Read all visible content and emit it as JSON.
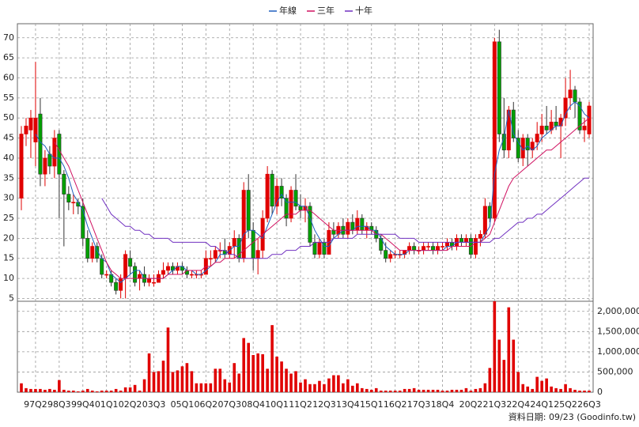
{
  "chart_data": [
    {
      "type": "candlestick",
      "legend": "top",
      "grid": true,
      "up_color": "#e00000",
      "down_color": "#00a000",
      "ylim": [
        4.5,
        73.5
      ],
      "yticks": [
        5,
        10,
        15,
        20,
        25,
        30,
        35,
        40,
        45,
        50,
        55,
        60,
        65,
        70
      ],
      "categories": [
        null,
        null,
        null,
        "97Q2",
        null,
        null,
        null,
        null,
        "98Q3",
        null,
        null,
        null,
        null,
        "99Q4",
        null,
        null,
        null,
        null,
        "01Q1",
        null,
        null,
        null,
        null,
        "02Q2",
        null,
        null,
        null,
        null,
        "03Q3",
        null,
        null,
        null,
        null,
        null,
        "05Q1",
        null,
        null,
        null,
        null,
        "06Q2",
        null,
        null,
        null,
        null,
        "07Q3",
        null,
        null,
        null,
        null,
        "08Q4",
        null,
        null,
        null,
        null,
        "10Q1",
        null,
        null,
        null,
        null,
        "11Q2",
        null,
        null,
        null,
        null,
        "12Q3",
        null,
        null,
        null,
        null,
        "13Q4",
        null,
        null,
        null,
        null,
        "15Q1",
        null,
        null,
        null,
        null,
        "16Q2",
        null,
        null,
        null,
        null,
        "17Q3",
        null,
        null,
        null,
        null,
        "18Q4",
        null,
        null,
        null,
        null,
        null,
        "20Q2",
        null,
        null,
        null,
        null,
        "21Q3",
        null,
        null,
        null,
        null,
        "22Q4",
        null,
        null,
        null,
        null,
        "24Q1",
        null,
        null,
        null,
        null,
        "25Q2",
        null,
        null,
        null,
        null,
        "26Q3"
      ],
      "open": [
        30,
        46,
        47,
        44,
        51,
        36,
        41,
        38,
        46,
        36,
        31,
        29,
        29,
        28,
        20,
        15,
        18,
        15,
        11,
        11,
        9,
        7,
        10,
        15,
        13,
        10,
        11,
        9,
        9,
        9,
        11,
        12,
        13,
        12,
        13,
        12,
        11,
        11,
        11,
        11,
        15,
        15,
        17,
        17,
        16,
        18,
        20,
        15,
        32,
        22,
        15,
        17,
        25,
        36,
        28,
        33,
        30,
        25,
        32,
        28,
        27,
        28,
        19,
        16,
        19,
        16,
        22,
        21,
        23,
        21,
        24,
        22,
        25,
        22,
        23,
        22,
        20,
        17,
        15,
        16,
        16,
        16,
        17,
        18,
        17,
        17,
        18,
        18,
        17,
        18,
        18,
        19,
        18,
        20,
        19,
        20,
        16,
        20,
        21,
        28,
        25,
        69,
        46,
        42,
        52,
        45,
        40,
        45,
        42,
        44,
        46,
        48,
        47,
        49,
        48,
        50,
        55,
        57,
        54,
        47,
        46
      ],
      "high": [
        48,
        50,
        52,
        64,
        55,
        42,
        43,
        47,
        47,
        37,
        33,
        31,
        30,
        30,
        22,
        19,
        19,
        16,
        12,
        12,
        10,
        11,
        17,
        17,
        14,
        12,
        13,
        11,
        11,
        12,
        14,
        14,
        14,
        14,
        14,
        13,
        12,
        12,
        12,
        17,
        17,
        18,
        19,
        20,
        19,
        22,
        21,
        34,
        36,
        24,
        20,
        27,
        38,
        37,
        35,
        35,
        31,
        33,
        36,
        31,
        30,
        29,
        21,
        20,
        20,
        24,
        24,
        24,
        25,
        25,
        26,
        27,
        26,
        24,
        24,
        23,
        21,
        19,
        17,
        17,
        17,
        17,
        19,
        19,
        18,
        19,
        19,
        19,
        19,
        19,
        20,
        20,
        21,
        21,
        21,
        21,
        21,
        22,
        30,
        29,
        70,
        72,
        55,
        53,
        54,
        47,
        46,
        46,
        45,
        49,
        51,
        53,
        52,
        53,
        51,
        60,
        62,
        58,
        55,
        50,
        54
      ],
      "low": [
        27,
        43,
        40,
        38,
        33,
        33,
        36,
        35,
        25,
        18,
        27,
        26,
        26,
        18,
        14,
        14,
        14,
        10,
        10,
        8,
        6,
        5,
        5,
        11,
        8,
        7,
        8,
        8,
        8,
        9,
        10,
        11,
        11,
        11,
        11,
        10,
        10,
        10,
        10,
        11,
        13,
        14,
        15,
        15,
        15,
        15,
        14,
        14,
        20,
        12,
        11,
        15,
        24,
        26,
        26,
        28,
        23,
        24,
        27,
        25,
        24,
        18,
        15,
        15,
        15,
        16,
        20,
        20,
        20,
        20,
        21,
        21,
        21,
        20,
        21,
        19,
        16,
        14,
        14,
        15,
        15,
        15,
        16,
        16,
        16,
        16,
        17,
        16,
        16,
        17,
        17,
        17,
        17,
        18,
        18,
        15,
        15,
        18,
        20,
        24,
        24,
        44,
        40,
        40,
        44,
        39,
        38,
        38,
        40,
        42,
        44,
        46,
        46,
        47,
        40,
        48,
        52,
        50,
        46,
        44,
        45
      ],
      "close": [
        46,
        48,
        50,
        50,
        36,
        40,
        38,
        45,
        36,
        31,
        29,
        29,
        28,
        20,
        15,
        18,
        15,
        11,
        11,
        9,
        7,
        10,
        16,
        13,
        9,
        11,
        9,
        10,
        9,
        11,
        12,
        13,
        12,
        13,
        12,
        11,
        11,
        11,
        11,
        15,
        15,
        17,
        17,
        16,
        18,
        20,
        15,
        32,
        22,
        15,
        17,
        25,
        36,
        28,
        33,
        30,
        25,
        32,
        28,
        27,
        28,
        19,
        16,
        19,
        16,
        22,
        21,
        23,
        21,
        24,
        22,
        25,
        22,
        23,
        22,
        20,
        17,
        15,
        16,
        16,
        16,
        17,
        18,
        17,
        17,
        18,
        18,
        17,
        18,
        18,
        19,
        18,
        20,
        19,
        20,
        16,
        20,
        21,
        28,
        25,
        69,
        46,
        42,
        52,
        45,
        40,
        45,
        42,
        44,
        46,
        48,
        47,
        49,
        48,
        50,
        55,
        57,
        54,
        47,
        48,
        53
      ],
      "series": [
        {
          "name": "年線",
          "color": "#1f5fbf",
          "values": [
            null,
            null,
            null,
            46,
            44,
            43,
            41,
            40,
            40,
            38,
            35,
            31,
            29,
            27,
            23,
            20,
            17,
            15,
            14,
            11,
            10,
            9,
            10,
            11,
            12,
            12,
            10,
            10,
            10,
            10,
            10,
            11,
            12,
            13,
            13,
            12,
            12,
            11,
            11,
            12,
            13,
            14,
            16,
            16,
            17,
            18,
            18,
            21,
            22,
            22,
            21,
            20,
            23,
            26,
            29,
            31,
            29,
            29,
            29,
            28,
            28,
            25,
            22,
            20,
            18,
            18,
            20,
            21,
            22,
            22,
            22,
            23,
            23,
            23,
            22,
            22,
            20,
            18,
            17,
            16,
            16,
            16,
            17,
            17,
            17,
            17,
            17,
            17,
            17,
            17,
            18,
            18,
            19,
            19,
            19,
            19,
            19,
            19,
            21,
            23,
            36,
            42,
            45,
            52,
            46,
            44,
            42,
            43,
            42,
            43,
            45,
            46,
            47,
            48,
            48,
            51,
            53,
            54,
            53,
            51,
            50
          ]
        },
        {
          "name": "三年",
          "color": "#d01060",
          "values": [
            null,
            null,
            null,
            null,
            null,
            null,
            null,
            44,
            42,
            40,
            38,
            35,
            32,
            29,
            26,
            23,
            20,
            17,
            14,
            12,
            11,
            10,
            10,
            10,
            10,
            10,
            10,
            10,
            10,
            10,
            10,
            11,
            11,
            11,
            11,
            12,
            12,
            12,
            12,
            13,
            13,
            14,
            14,
            15,
            15,
            15,
            16,
            17,
            18,
            19,
            20,
            21,
            22,
            23,
            24,
            25,
            26,
            26,
            26,
            27,
            27,
            27,
            26,
            25,
            24,
            23,
            22,
            22,
            22,
            22,
            22,
            22,
            22,
            22,
            22,
            21,
            21,
            20,
            19,
            18,
            17,
            17,
            17,
            17,
            17,
            17,
            17,
            17,
            17,
            17,
            17,
            18,
            18,
            18,
            18,
            18,
            19,
            19,
            20,
            21,
            24,
            27,
            30,
            33,
            35,
            36,
            37,
            38,
            39,
            40,
            41,
            42,
            42,
            43,
            44,
            45,
            46,
            47,
            48,
            49,
            50
          ]
        },
        {
          "name": "十年",
          "color": "#7030c0",
          "values": [
            null,
            null,
            null,
            null,
            null,
            null,
            null,
            null,
            null,
            null,
            null,
            null,
            null,
            null,
            null,
            null,
            null,
            30,
            28,
            26,
            25,
            24,
            23,
            23,
            22,
            22,
            21,
            21,
            20,
            20,
            20,
            20,
            19,
            19,
            19,
            19,
            19,
            19,
            19,
            19,
            18,
            18,
            17,
            17,
            16,
            16,
            15,
            15,
            15,
            15,
            15,
            15,
            15,
            16,
            16,
            16,
            17,
            17,
            17,
            18,
            18,
            18,
            19,
            19,
            19,
            19,
            20,
            20,
            20,
            20,
            20,
            21,
            21,
            21,
            21,
            21,
            21,
            21,
            21,
            21,
            20,
            20,
            20,
            20,
            19,
            19,
            19,
            19,
            19,
            19,
            19,
            19,
            19,
            19,
            19,
            19,
            19,
            19,
            19,
            19,
            20,
            20,
            21,
            22,
            23,
            24,
            24,
            25,
            25,
            26,
            26,
            27,
            28,
            29,
            30,
            31,
            32,
            33,
            34,
            35,
            35
          ]
        }
      ]
    },
    {
      "type": "bar",
      "color": "#e00000",
      "grid": true,
      "ylim": [
        0,
        2250000
      ],
      "yticks": [
        0,
        {
          "value": 500000,
          "label": "500,000"
        },
        {
          "value": 1000000,
          "label": "1,000,000"
        },
        {
          "value": 1500000,
          "label": "1,500,000"
        },
        {
          "value": 2000000,
          "label": "2,000,000"
        }
      ],
      "annotation": "資料日期: 09/23 (Goodinfo.tw)",
      "values": [
        220000,
        100000,
        80000,
        80000,
        80000,
        60000,
        80000,
        60000,
        300000,
        60000,
        40000,
        40000,
        20000,
        40000,
        80000,
        40000,
        20000,
        40000,
        40000,
        40000,
        80000,
        40000,
        120000,
        120000,
        180000,
        40000,
        320000,
        960000,
        500000,
        520000,
        780000,
        1600000,
        500000,
        540000,
        640000,
        720000,
        520000,
        220000,
        220000,
        220000,
        220000,
        580000,
        580000,
        320000,
        240000,
        720000,
        460000,
        1340000,
        1220000,
        920000,
        960000,
        940000,
        580000,
        1660000,
        880000,
        760000,
        580000,
        460000,
        520000,
        240000,
        320000,
        200000,
        200000,
        280000,
        200000,
        340000,
        420000,
        420000,
        220000,
        320000,
        160000,
        220000,
        100000,
        80000,
        60000,
        100000,
        40000,
        40000,
        40000,
        40000,
        40000,
        80000,
        80000,
        100000,
        60000,
        60000,
        60000,
        60000,
        60000,
        40000,
        40000,
        60000,
        60000,
        60000,
        100000,
        40000,
        80000,
        100000,
        220000,
        600000,
        2250000,
        1300000,
        800000,
        2100000,
        1300000,
        500000,
        200000,
        140000,
        80000,
        380000,
        280000,
        340000,
        140000,
        100000,
        80000,
        200000,
        100000,
        60000,
        40000,
        40000,
        40000
      ]
    }
  ]
}
